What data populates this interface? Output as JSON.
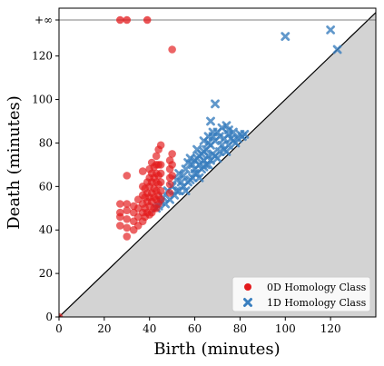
{
  "chart_data": {
    "type": "scatter",
    "title": "",
    "xlabel": "Birth (minutes)",
    "ylabel": "Death (minutes)",
    "xlim": [
      0,
      140
    ],
    "ylim": [
      0,
      142
    ],
    "x_ticks": [
      0,
      20,
      40,
      60,
      80,
      100,
      120
    ],
    "y_ticks": [
      0,
      20,
      40,
      60,
      80,
      100,
      120
    ],
    "infinity_label": "+∞",
    "infinity_line": true,
    "diagonal": true,
    "grid": false,
    "legend_position": "bottom-right",
    "series": [
      {
        "name": "0D Homology Class",
        "marker": "circle",
        "color": "#e31a1c",
        "points": [
          [
            0,
            0
          ],
          [
            27,
            42
          ],
          [
            27,
            46
          ],
          [
            27,
            48
          ],
          [
            27,
            52
          ],
          [
            30,
            37
          ],
          [
            30,
            41
          ],
          [
            30,
            45
          ],
          [
            30,
            49
          ],
          [
            30,
            52
          ],
          [
            30,
            65
          ],
          [
            33,
            40
          ],
          [
            33,
            44
          ],
          [
            33,
            48
          ],
          [
            33,
            51
          ],
          [
            35,
            42
          ],
          [
            35,
            46
          ],
          [
            35,
            50
          ],
          [
            35,
            54
          ],
          [
            37,
            44
          ],
          [
            37,
            48
          ],
          [
            37,
            52
          ],
          [
            37,
            56
          ],
          [
            37,
            60
          ],
          [
            37,
            67
          ],
          [
            38,
            46
          ],
          [
            38,
            50
          ],
          [
            38,
            55
          ],
          [
            38,
            59
          ],
          [
            39,
            48
          ],
          [
            39,
            53
          ],
          [
            39,
            57
          ],
          [
            39,
            62
          ],
          [
            40,
            47
          ],
          [
            40,
            51
          ],
          [
            40,
            55
          ],
          [
            40,
            60
          ],
          [
            40,
            64
          ],
          [
            40,
            68
          ],
          [
            41,
            48
          ],
          [
            41,
            53
          ],
          [
            41,
            57
          ],
          [
            41,
            62
          ],
          [
            41,
            66
          ],
          [
            41,
            71
          ],
          [
            42,
            50
          ],
          [
            42,
            55
          ],
          [
            42,
            59
          ],
          [
            42,
            64
          ],
          [
            42,
            69
          ],
          [
            43,
            50
          ],
          [
            43,
            54
          ],
          [
            43,
            58
          ],
          [
            43,
            62
          ],
          [
            43,
            66
          ],
          [
            43,
            70
          ],
          [
            43,
            74
          ],
          [
            44,
            52
          ],
          [
            44,
            56
          ],
          [
            44,
            61
          ],
          [
            44,
            65
          ],
          [
            44,
            70
          ],
          [
            44,
            77
          ],
          [
            45,
            54
          ],
          [
            45,
            58
          ],
          [
            45,
            62
          ],
          [
            45,
            66
          ],
          [
            45,
            70
          ],
          [
            45,
            79
          ],
          [
            49,
            57
          ],
          [
            49,
            61
          ],
          [
            49,
            64
          ],
          [
            49,
            68
          ],
          [
            49,
            72
          ],
          [
            50,
            65
          ],
          [
            50,
            70
          ],
          [
            50,
            75
          ],
          [
            50,
            123
          ]
        ],
        "infinite_births": [
          27,
          30,
          39
        ]
      },
      {
        "name": "1D Homology Class",
        "marker": "x",
        "color": "#3a7fbf",
        "points": [
          [
            47,
            52
          ],
          [
            49,
            54
          ],
          [
            51,
            56
          ],
          [
            53,
            58
          ],
          [
            55,
            60
          ],
          [
            57,
            62
          ],
          [
            59,
            64
          ],
          [
            61,
            66
          ],
          [
            63,
            68
          ],
          [
            65,
            70
          ],
          [
            67,
            72
          ],
          [
            69,
            74
          ],
          [
            71,
            76
          ],
          [
            73,
            77
          ],
          [
            75,
            79
          ],
          [
            77,
            81
          ],
          [
            79,
            82
          ],
          [
            81,
            83
          ],
          [
            50,
            60
          ],
          [
            52,
            58
          ],
          [
            54,
            62
          ],
          [
            56,
            58
          ],
          [
            58,
            63
          ],
          [
            60,
            66
          ],
          [
            62,
            64
          ],
          [
            64,
            69
          ],
          [
            66,
            70
          ],
          [
            68,
            75
          ],
          [
            70,
            73
          ],
          [
            72,
            79
          ],
          [
            74,
            76
          ],
          [
            76,
            82
          ],
          [
            78,
            80
          ],
          [
            80,
            84
          ],
          [
            82,
            84
          ],
          [
            53,
            66
          ],
          [
            56,
            68
          ],
          [
            59,
            70
          ],
          [
            61,
            73
          ],
          [
            63,
            75
          ],
          [
            65,
            77
          ],
          [
            67,
            79
          ],
          [
            69,
            81
          ],
          [
            71,
            83
          ],
          [
            60,
            72
          ],
          [
            62,
            74
          ],
          [
            64,
            76
          ],
          [
            66,
            80
          ],
          [
            68,
            83
          ],
          [
            70,
            85
          ],
          [
            57,
            71
          ],
          [
            58,
            73
          ],
          [
            64,
            81
          ],
          [
            66,
            83
          ],
          [
            67,
            90
          ],
          [
            68,
            85
          ],
          [
            69,
            98
          ],
          [
            72,
            87
          ],
          [
            74,
            88
          ],
          [
            75,
            86
          ],
          [
            61,
            77
          ],
          [
            55,
            65
          ],
          [
            52,
            63
          ],
          [
            48,
            58
          ],
          [
            46,
            55
          ],
          [
            45,
            53
          ],
          [
            44,
            51
          ],
          [
            43,
            50
          ],
          [
            60,
            68
          ],
          [
            62,
            70
          ],
          [
            64,
            72
          ],
          [
            66,
            74
          ],
          [
            73,
            82
          ],
          [
            75,
            84
          ],
          [
            77,
            85
          ],
          [
            100,
            129
          ],
          [
            120,
            132
          ],
          [
            123,
            123
          ]
        ]
      }
    ]
  }
}
